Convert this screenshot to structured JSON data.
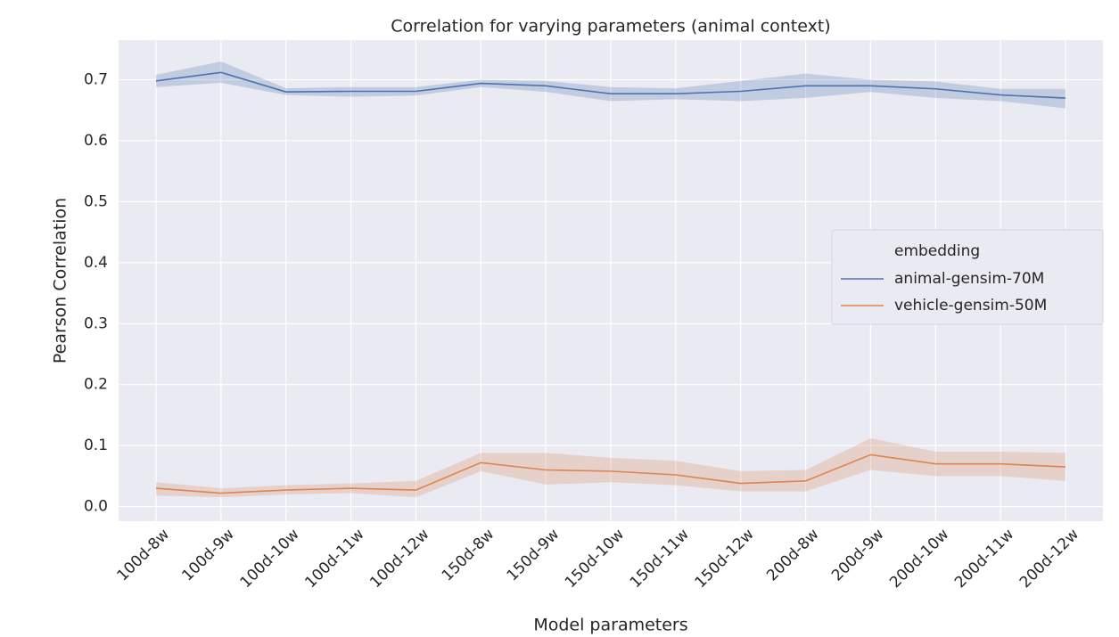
{
  "chart_data": {
    "type": "line",
    "title": "Correlation for varying parameters (animal context)",
    "x_label": "Model parameters",
    "y_label": "Pearson Correlation",
    "categories": [
      "100d-8w",
      "100d-9w",
      "100d-10w",
      "100d-11w",
      "100d-12w",
      "150d-8w",
      "150d-9w",
      "150d-10w",
      "150d-11w",
      "150d-12w",
      "200d-8w",
      "200d-9w",
      "200d-10w",
      "200d-11w",
      "200d-12w"
    ],
    "series": [
      {
        "name": "animal-gensim-70M",
        "color": "#4c72b0",
        "values": [
          0.698,
          0.712,
          0.68,
          0.681,
          0.681,
          0.694,
          0.69,
          0.677,
          0.677,
          0.681,
          0.69,
          0.69,
          0.685,
          0.675,
          0.67
        ],
        "ci_lower": [
          0.688,
          0.695,
          0.675,
          0.672,
          0.674,
          0.688,
          0.68,
          0.665,
          0.668,
          0.665,
          0.67,
          0.68,
          0.67,
          0.665,
          0.653
        ],
        "ci_upper": [
          0.708,
          0.73,
          0.686,
          0.688,
          0.688,
          0.7,
          0.698,
          0.688,
          0.686,
          0.698,
          0.71,
          0.7,
          0.697,
          0.685,
          0.685
        ]
      },
      {
        "name": "vehicle-gensim-50M",
        "color": "#dd8452",
        "values": [
          0.03,
          0.022,
          0.027,
          0.03,
          0.027,
          0.072,
          0.06,
          0.058,
          0.052,
          0.038,
          0.042,
          0.085,
          0.07,
          0.07,
          0.065
        ],
        "ci_lower": [
          0.018,
          0.015,
          0.02,
          0.022,
          0.015,
          0.058,
          0.036,
          0.04,
          0.035,
          0.025,
          0.025,
          0.06,
          0.05,
          0.05,
          0.042
        ],
        "ci_upper": [
          0.04,
          0.03,
          0.035,
          0.038,
          0.042,
          0.088,
          0.088,
          0.08,
          0.075,
          0.058,
          0.06,
          0.112,
          0.09,
          0.09,
          0.088
        ]
      }
    ],
    "legend_title": "embedding",
    "legend_position": "center right",
    "ylim": [
      -0.024,
      0.765
    ],
    "yticks": [
      {
        "value": 0,
        "label": "0.0"
      },
      0.1,
      0.2,
      0.3,
      0.4,
      0.5,
      0.6,
      0.7
    ],
    "grid": true,
    "background": "#eaeaf2"
  }
}
